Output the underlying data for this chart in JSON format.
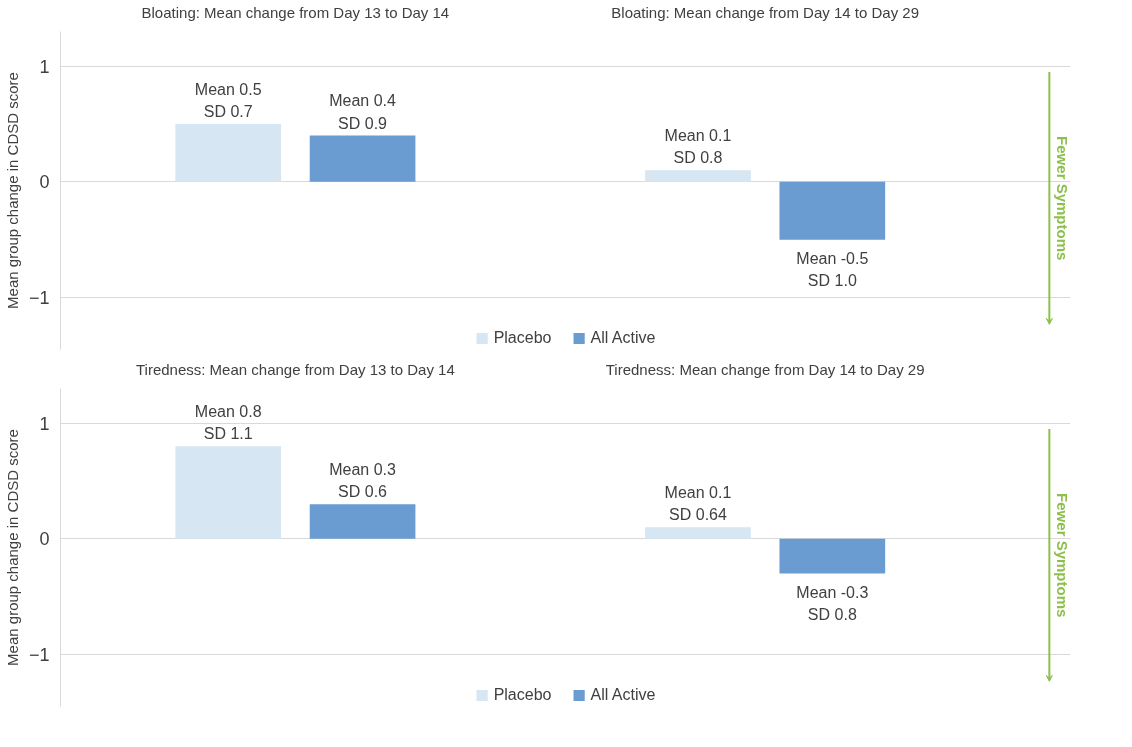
{
  "chart_data": [
    {
      "type": "bar",
      "categories": [
        "Bloating: Mean change from Day 13 to Day 14",
        "Bloating: Mean change from Day 14 to Day 29"
      ],
      "ylabel": "Mean group change in CDSD score",
      "ylim": [
        -1.45,
        1.3
      ],
      "yticks": [
        -1,
        0,
        1
      ],
      "grid": "y",
      "legend": "bottom",
      "annotations": [
        "Fewer Symptoms"
      ],
      "series": [
        {
          "name": "Placebo",
          "color": "#d6e6f2",
          "values": [
            0.5,
            0.1
          ],
          "value_labels": [
            "Mean 0.5\nSD 0.7",
            "Mean 0.1\nSD 0.8"
          ]
        },
        {
          "name": "All Active",
          "color": "#6a9bd1",
          "values": [
            0.4,
            -0.5
          ],
          "value_labels": [
            "Mean 0.4\nSD 0.9",
            "Mean -0.5\nSD 1.0"
          ]
        }
      ]
    },
    {
      "type": "bar",
      "categories": [
        "Tiredness: Mean change from Day 13 to Day 14",
        "Tiredness: Mean change from Day 14 to Day 29"
      ],
      "ylabel": "Mean group change in CDSD score",
      "ylim": [
        -1.45,
        1.3
      ],
      "yticks": [
        -1,
        0,
        1
      ],
      "grid": "y",
      "legend": "bottom",
      "annotations": [
        "Fewer Symptoms"
      ],
      "series": [
        {
          "name": "Placebo",
          "color": "#d6e6f2",
          "values": [
            0.8,
            0.1
          ],
          "value_labels": [
            "Mean 0.8\nSD 1.1",
            "Mean 0.1\nSD 0.64"
          ]
        },
        {
          "name": "All Active",
          "color": "#6a9bd1",
          "values": [
            0.3,
            -0.3
          ],
          "value_labels": [
            "Mean 0.3\nSD 0.6",
            "Mean -0.3\nSD 0.8"
          ]
        }
      ]
    }
  ]
}
